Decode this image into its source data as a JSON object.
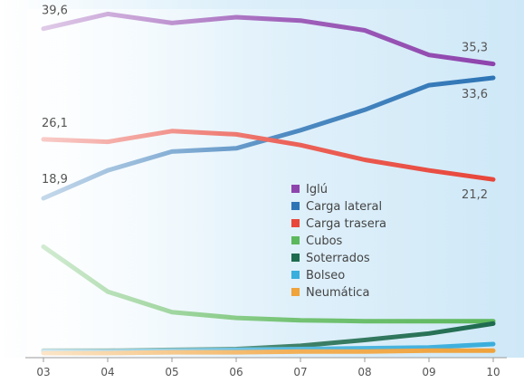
{
  "chart_data": {
    "type": "line",
    "x": [
      "03",
      "04",
      "05",
      "06",
      "07",
      "08",
      "09",
      "10"
    ],
    "ylim": [
      0,
      42
    ],
    "grid": false,
    "legend_position": "center-right",
    "series": [
      {
        "name": "Iglú",
        "color": "#8e44ad",
        "values": [
          39.6,
          41.4,
          40.3,
          41.0,
          40.6,
          39.4,
          36.4,
          35.3
        ],
        "labels": {
          "first": "39,6",
          "last": "35,3"
        }
      },
      {
        "name": "Carga lateral",
        "color": "#2e75b6",
        "values": [
          18.9,
          22.3,
          24.6,
          25.0,
          27.2,
          29.7,
          32.7,
          33.6
        ],
        "labels": {
          "first": "18,9",
          "last": "33,6"
        }
      },
      {
        "name": "Carga trasera",
        "color": "#e8463a",
        "values": [
          26.1,
          25.8,
          27.1,
          26.7,
          25.4,
          23.6,
          22.3,
          21.2
        ],
        "labels": {
          "first": "26,1",
          "last": "21,2"
        }
      },
      {
        "name": "Cubos",
        "color": "#5cb85c",
        "values": [
          13.0,
          7.5,
          5.0,
          4.3,
          4.0,
          3.9,
          3.9,
          3.9
        ]
      },
      {
        "name": "Soterrados",
        "color": "#1e6b4f",
        "values": [
          0.3,
          0.3,
          0.4,
          0.5,
          0.9,
          1.6,
          2.4,
          3.6
        ]
      },
      {
        "name": "Bolseo",
        "color": "#3aaedc",
        "values": [
          0.2,
          0.2,
          0.3,
          0.4,
          0.5,
          0.6,
          0.7,
          1.1
        ]
      },
      {
        "name": "Neumática",
        "color": "#f0a23b",
        "values": [
          0.0,
          0.0,
          0.1,
          0.1,
          0.2,
          0.2,
          0.3,
          0.3
        ]
      }
    ]
  }
}
